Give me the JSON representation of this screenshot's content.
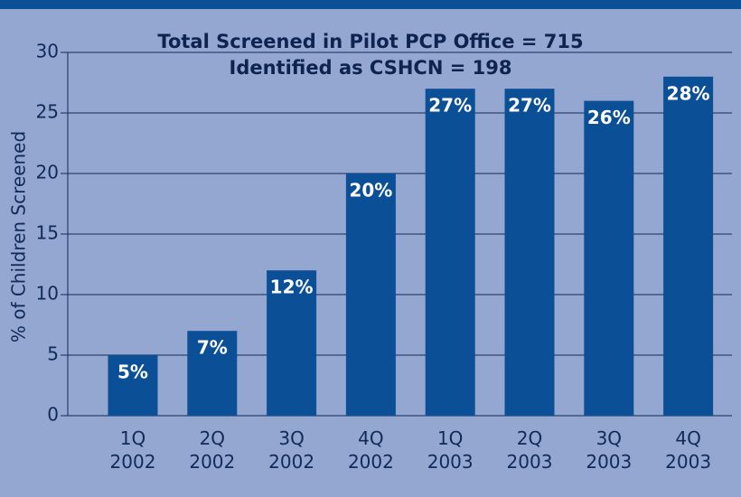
{
  "chart_data": {
    "type": "bar",
    "annotations": [
      "Total Screened in Pilot PCP Office = 715",
      "Identified as CSHCN = 198"
    ],
    "y_label": "% of Children Screened",
    "categories": [
      "1Q\n2002",
      "2Q\n2002",
      "3Q\n2002",
      "4Q\n2002",
      "1Q\n2003",
      "2Q\n2003",
      "3Q\n2003",
      "4Q\n2003"
    ],
    "values": [
      5,
      7,
      12,
      20,
      27,
      27,
      26,
      28
    ],
    "value_labels": [
      "5%",
      "7%",
      "12%",
      "20%",
      "27%",
      "27%",
      "26%",
      "28%"
    ],
    "color": "#0b4f97",
    "ylim": [
      0,
      30
    ],
    "yticks": [
      0,
      5,
      10,
      15,
      20,
      25,
      30
    ],
    "grid": true
  }
}
